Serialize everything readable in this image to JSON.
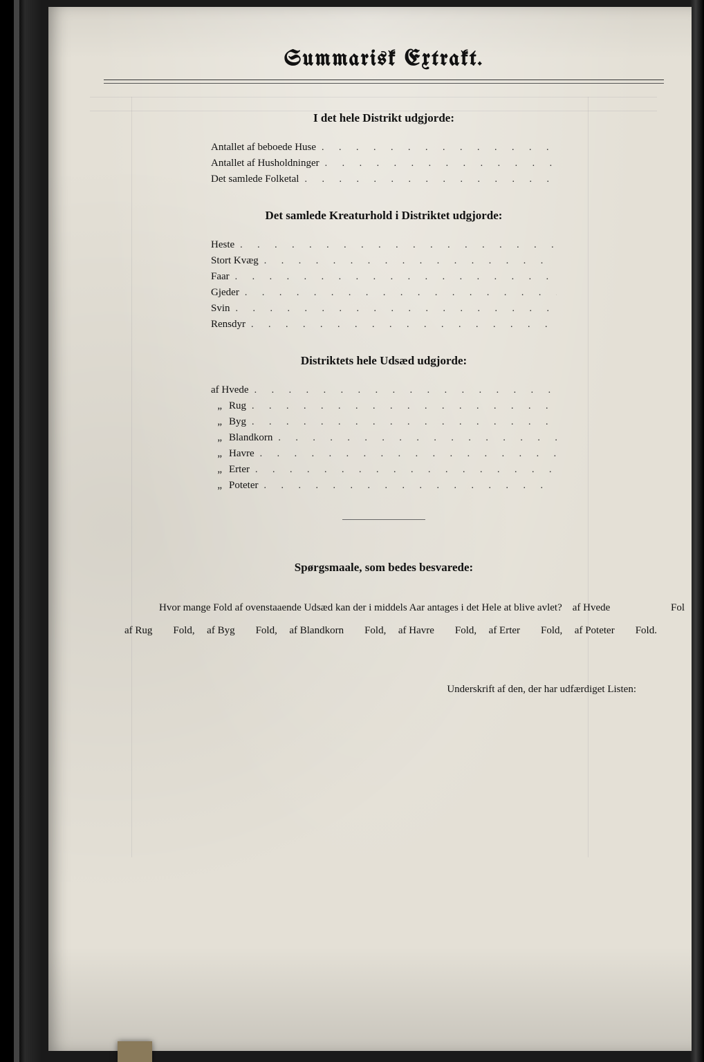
{
  "title": "Summarisk Extrakt.",
  "sections": [
    {
      "heading": "I det hele Distrikt udgjorde:",
      "items": [
        {
          "label": "Antallet af beboede Huse",
          "ditto": false
        },
        {
          "label": "Antallet af Husholdninger",
          "ditto": false
        },
        {
          "label": "Det samlede Folketal",
          "ditto": false
        }
      ]
    },
    {
      "heading": "Det samlede Kreaturhold i Distriktet udgjorde:",
      "items": [
        {
          "label": "Heste",
          "ditto": false
        },
        {
          "label": "Stort Kvæg",
          "ditto": false
        },
        {
          "label": "Faar",
          "ditto": false
        },
        {
          "label": "Gjeder",
          "ditto": false
        },
        {
          "label": "Svin",
          "ditto": false
        },
        {
          "label": "Rensdyr",
          "ditto": false
        }
      ]
    },
    {
      "heading": "Distriktets hele Udsæd udgjorde:",
      "items": [
        {
          "label": "af Hvede",
          "ditto": false
        },
        {
          "label": "Rug",
          "ditto": true
        },
        {
          "label": "Byg",
          "ditto": true
        },
        {
          "label": "Blandkorn",
          "ditto": true
        },
        {
          "label": "Havre",
          "ditto": true
        },
        {
          "label": "Erter",
          "ditto": true
        },
        {
          "label": "Poteter",
          "ditto": true
        }
      ]
    }
  ],
  "questions": {
    "heading": "Spørgsmaale, som bedes besvarede:",
    "intro": "Hvor mange Fold af ovenstaaende Udsæd kan der i middels Aar antages i det Hele at blive avlet?",
    "lead": "af Hvede",
    "fold_word": "Fold,",
    "fold_end": "Fold.",
    "crops": [
      "af Rug",
      "af Byg",
      "af Blandkorn",
      "af Havre",
      "af Erter",
      "af Poteter"
    ],
    "right_fragment": "Fol"
  },
  "signature": "Underskrift af den, der har udfærdiget Listen:",
  "colors": {
    "page_bg": "#e4e0d6",
    "text": "#111111",
    "frame": "#000000"
  }
}
